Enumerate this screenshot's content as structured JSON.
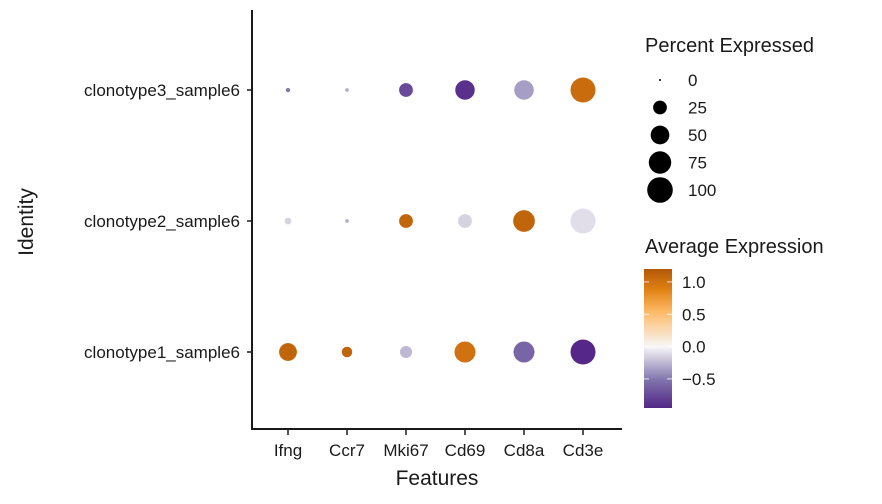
{
  "chart_data": {
    "type": "dotplot",
    "title": "",
    "xlabel": "Features",
    "ylabel": "Identity",
    "features": [
      "Ifng",
      "Ccr7",
      "Mki67",
      "Cd69",
      "Cd8a",
      "Cd3e"
    ],
    "identities": [
      "clonotype1_sample6",
      "clonotype2_sample6",
      "clonotype3_sample6"
    ],
    "rows": [
      {
        "identity": "clonotype1_sample6",
        "pct_exp": [
          45,
          13,
          18,
          65,
          65,
          95
        ],
        "avg_exp": [
          1.1,
          1.1,
          -0.25,
          1.0,
          -0.6,
          -0.95
        ]
      },
      {
        "identity": "clonotype2_sample6",
        "pct_exp": [
          4,
          0.5,
          25,
          25,
          70,
          95
        ],
        "avg_exp": [
          -0.15,
          -0.3,
          1.1,
          -0.15,
          1.1,
          -0.1
        ]
      },
      {
        "identity": "clonotype3_sample6",
        "pct_exp": [
          1,
          0.5,
          25,
          55,
          55,
          95
        ],
        "avg_exp": [
          -0.5,
          -0.3,
          -0.75,
          -0.9,
          -0.35,
          1.05
        ]
      }
    ],
    "size_legend": {
      "title": "Percent Expressed",
      "values": [
        0,
        25,
        50,
        75,
        100
      ],
      "labels": [
        "0",
        "25",
        "50",
        "75",
        "100"
      ]
    },
    "color_legend": {
      "title": "Average Expression",
      "range": [
        -0.95,
        1.2
      ],
      "ticks": [
        1.0,
        0.5,
        0.0,
        -0.5
      ],
      "tick_labels": [
        "1.0",
        "0.5",
        "0.0",
        "−0.5"
      ],
      "low_color": "#542788",
      "mid_color": "#f7f7f7",
      "high_color": "#b35806"
    },
    "legend_position": "right",
    "grid": false
  }
}
